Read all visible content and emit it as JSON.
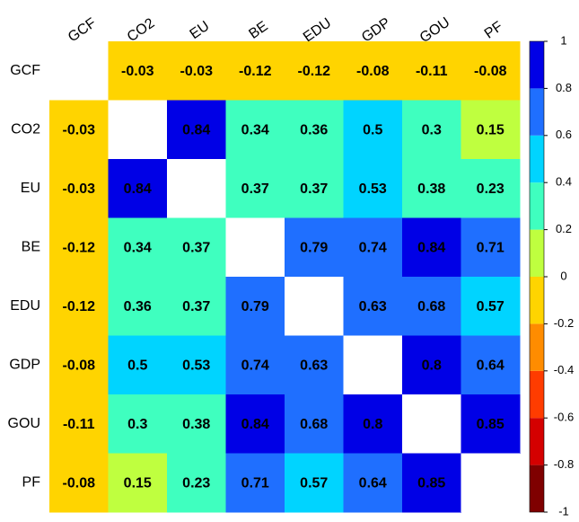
{
  "chart_data": {
    "type": "heatmap",
    "rows": [
      "GCF",
      "CO2",
      "EU",
      "BE",
      "EDU",
      "GDP",
      "GOU",
      "PF"
    ],
    "columns": [
      "GCF",
      "CO2",
      "EU",
      "BE",
      "EDU",
      "GDP",
      "GOU",
      "PF"
    ],
    "matrix": [
      [
        null,
        -0.03,
        -0.03,
        -0.12,
        -0.12,
        -0.08,
        -0.11,
        -0.08
      ],
      [
        -0.03,
        null,
        0.84,
        0.34,
        0.36,
        0.5,
        0.3,
        0.15
      ],
      [
        -0.03,
        0.84,
        null,
        0.37,
        0.37,
        0.53,
        0.38,
        0.23
      ],
      [
        -0.12,
        0.34,
        0.37,
        null,
        0.79,
        0.74,
        0.84,
        0.71
      ],
      [
        -0.12,
        0.36,
        0.37,
        0.79,
        null,
        0.63,
        0.68,
        0.57
      ],
      [
        -0.08,
        0.5,
        0.53,
        0.74,
        0.63,
        null,
        0.8,
        0.64
      ],
      [
        -0.11,
        0.3,
        0.38,
        0.84,
        0.68,
        0.8,
        null,
        0.85
      ],
      [
        -0.08,
        0.15,
        0.23,
        0.71,
        0.57,
        0.64,
        0.85,
        null
      ]
    ],
    "colorbar": {
      "lim": [
        -1,
        1
      ],
      "ticks": [
        -1,
        -0.8,
        -0.6,
        -0.4,
        -0.2,
        0,
        0.2,
        0.4,
        0.6,
        0.8,
        1
      ],
      "colors": [
        "#7f0000",
        "#d40000",
        "#ff3c00",
        "#ff8c00",
        "#ffd400",
        "#bfff3f",
        "#3fffbf",
        "#00d4ff",
        "#1f6fff",
        "#0000e6",
        "#00007f"
      ]
    }
  }
}
